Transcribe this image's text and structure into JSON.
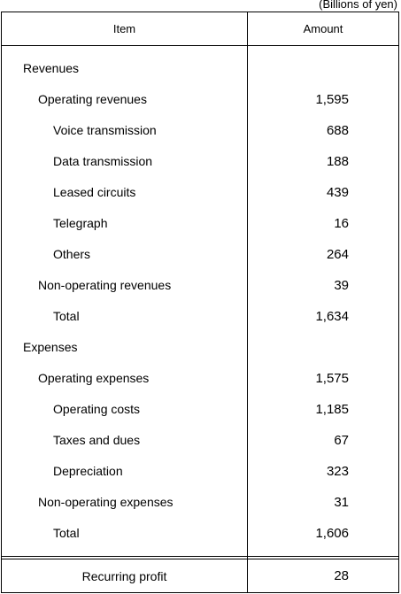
{
  "unit_note": "(Billions of yen)",
  "headers": {
    "item": "Item",
    "amount": "Amount"
  },
  "rows": [
    {
      "label": "Revenues",
      "value": "",
      "level": 0
    },
    {
      "label": "Operating revenues",
      "value": "1,595",
      "level": 1
    },
    {
      "label": "Voice transmission",
      "value": "688",
      "level": 2
    },
    {
      "label": "Data transmission",
      "value": "188",
      "level": 2
    },
    {
      "label": "Leased circuits",
      "value": "439",
      "level": 2
    },
    {
      "label": "Telegraph",
      "value": "16",
      "level": 2
    },
    {
      "label": "Others",
      "value": "264",
      "level": 2
    },
    {
      "label": "Non-operating revenues",
      "value": "39",
      "level": 1
    },
    {
      "label": "Total",
      "value": "1,634",
      "level": 2
    },
    {
      "label": "Expenses",
      "value": "",
      "level": 0
    },
    {
      "label": "Operating expenses",
      "value": "1,575",
      "level": 1
    },
    {
      "label": "Operating costs",
      "value": "1,185",
      "level": 2
    },
    {
      "label": "Taxes and dues",
      "value": "67",
      "level": 2
    },
    {
      "label": "Depreciation",
      "value": "323",
      "level": 2
    },
    {
      "label": "Non-operating expenses",
      "value": "31",
      "level": 1
    },
    {
      "label": "Total",
      "value": "1,606",
      "level": 2
    }
  ],
  "footer": {
    "label": "Recurring profit",
    "value": "28"
  }
}
